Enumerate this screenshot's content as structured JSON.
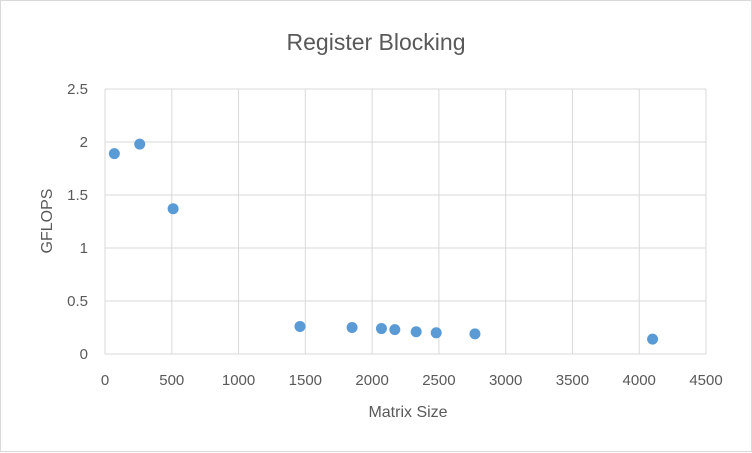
{
  "chart_data": {
    "type": "scatter",
    "title": "Register Blocking",
    "xlabel": "Matrix Size",
    "ylabel": "GFLOPS",
    "xlim": [
      0,
      4500
    ],
    "ylim": [
      0,
      2.5
    ],
    "x_ticks": [
      0,
      500,
      1000,
      1500,
      2000,
      2500,
      3000,
      3500,
      4000,
      4500
    ],
    "y_ticks": [
      "0",
      "0.5",
      "1",
      "1.5",
      "2",
      "2.5"
    ],
    "grid": true,
    "legend": "none",
    "series": [
      {
        "color": "#5b9bd5",
        "points": [
          {
            "x": 70,
            "y": 1.89
          },
          {
            "x": 260,
            "y": 1.98
          },
          {
            "x": 510,
            "y": 1.37
          },
          {
            "x": 1460,
            "y": 0.26
          },
          {
            "x": 1850,
            "y": 0.25
          },
          {
            "x": 2070,
            "y": 0.24
          },
          {
            "x": 2170,
            "y": 0.23
          },
          {
            "x": 2330,
            "y": 0.21
          },
          {
            "x": 2480,
            "y": 0.2
          },
          {
            "x": 2770,
            "y": 0.19
          },
          {
            "x": 4100,
            "y": 0.14
          }
        ]
      }
    ]
  }
}
